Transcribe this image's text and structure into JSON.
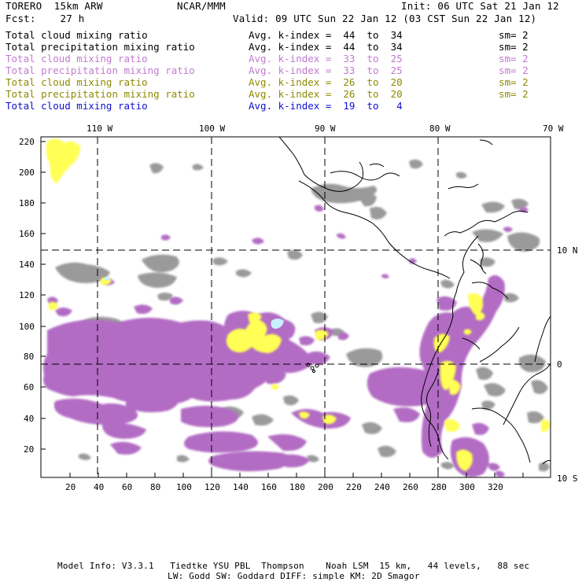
{
  "header": {
    "model": "TORERO  15km ARW",
    "center": "NCAR/MMM",
    "init": "Init: 06 UTC Sat 21 Jan 12",
    "fcst": "Fcst:    27 h",
    "valid": "Valid: 09 UTC Sun 22 Jan 12 (03 CST Sun 22 Jan 12)"
  },
  "legend": [
    {
      "field": "Total cloud mixing ratio",
      "index": "Avg. k-index =  44  to  34",
      "sm": "sm= 2",
      "color": "#000000"
    },
    {
      "field": "Total precipitation mixing ratio",
      "index": "Avg. k-index =  44  to  34",
      "sm": "sm= 2",
      "color": "#000000"
    },
    {
      "field": "Total cloud mixing ratio",
      "index": "Avg. k-index =  33  to  25",
      "sm": "sm= 2",
      "color": "#c27ad0"
    },
    {
      "field": "Total precipitation mixing ratio",
      "index": "Avg. k-index =  33  to  25",
      "sm": "sm= 2",
      "color": "#c27ad0"
    },
    {
      "field": "Total cloud mixing ratio",
      "index": "Avg. k-index =  26  to  20",
      "sm": "sm= 2",
      "color": "#8f8a00"
    },
    {
      "field": "Total precipitation mixing ratio",
      "index": "Avg. k-index =  26  to  20",
      "sm": "sm= 2",
      "color": "#8f8a00"
    },
    {
      "field": "Total cloud mixing ratio",
      "index": "Avg. k-index =  19  to   4",
      "sm": "",
      "color": "#1010d0"
    }
  ],
  "map": {
    "lon_labels": [
      "110 W",
      "100 W",
      "90 W",
      "80 W",
      "70 W"
    ],
    "lat_labels": [
      "10 N",
      "0",
      "10 S"
    ],
    "y_ticks": [
      "220",
      "200",
      "180",
      "160",
      "140",
      "120",
      "100",
      "80",
      "60",
      "40",
      "20"
    ],
    "x_ticks": [
      "20",
      "40",
      "60",
      "80",
      "100",
      "120",
      "140",
      "160",
      "180",
      "200",
      "220",
      "240",
      "260",
      "280",
      "300",
      "320"
    ],
    "colors": {
      "gray": "#9a9a9a",
      "purple": "#b26cc4",
      "yellow": "#ffff55",
      "cyan": "#c8f0ff",
      "frame": "#000000"
    }
  },
  "footer": {
    "line1": "Model Info: V3.3.1   Tiedtke YSU PBL  Thompson    Noah LSM  15 km,   44 levels,   88 sec",
    "line2": "LW: Godd SW: Goddard DIFF: simple KM: 2D Smagor"
  }
}
